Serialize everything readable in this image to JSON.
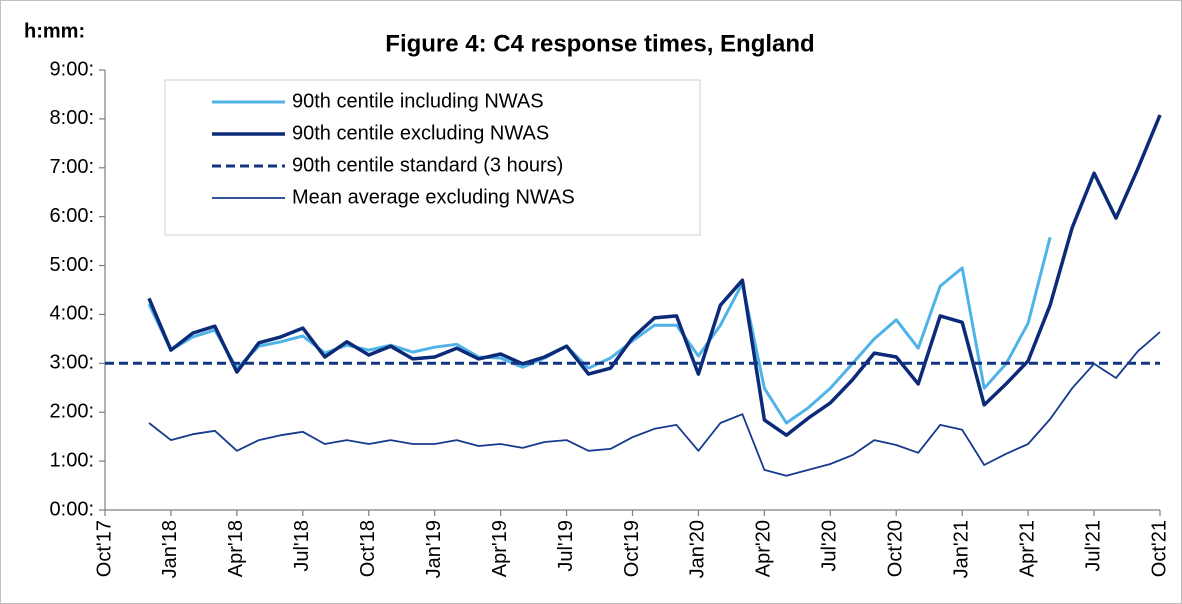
{
  "chart_data": {
    "type": "line",
    "title": "Figure 4: C4 response times, England",
    "y_label": "h:mm:",
    "categories": [
      "Oct'17",
      null,
      null,
      "Jan'18",
      null,
      null,
      "Apr'18",
      null,
      null,
      "Jul'18",
      null,
      null,
      "Oct'18",
      null,
      null,
      "Jan'19",
      null,
      null,
      "Apr'19",
      null,
      null,
      "Jul'19",
      null,
      null,
      "Oct'19",
      null,
      null,
      "Jan'20",
      null,
      null,
      "Apr'20",
      null,
      null,
      "Jul'20",
      null,
      null,
      "Oct'20",
      null,
      null,
      "Jan'21",
      null,
      null,
      "Apr'21",
      null,
      null,
      "Jul'21",
      null,
      null,
      "Oct'21"
    ],
    "series": [
      {
        "name": "90th centile including NWAS",
        "color": "#4fb3e8",
        "values": [
          null,
          null,
          4.21,
          3.27,
          3.54,
          3.68,
          2.9,
          3.35,
          3.44,
          3.56,
          3.21,
          3.37,
          3.27,
          3.37,
          3.23,
          3.33,
          3.39,
          3.13,
          3.11,
          2.92,
          3.11,
          3.35,
          2.9,
          3.11,
          3.46,
          3.78,
          3.78,
          3.15,
          3.78,
          4.64,
          2.49,
          1.78,
          2.09,
          2.49,
          2.99,
          3.5,
          3.89,
          3.31,
          4.58,
          4.95,
          2.49,
          2.99,
          3.82,
          5.58,
          null,
          null,
          null,
          null,
          null
        ]
      },
      {
        "name": "90th centile excluding NWAS",
        "color": "#0b2a78",
        "values": [
          null,
          null,
          4.33,
          3.27,
          3.62,
          3.76,
          2.82,
          3.42,
          3.54,
          3.72,
          3.13,
          3.44,
          3.17,
          3.35,
          3.09,
          3.13,
          3.31,
          3.09,
          3.19,
          2.99,
          3.13,
          3.35,
          2.78,
          2.9,
          3.52,
          3.93,
          3.97,
          2.78,
          4.19,
          4.7,
          1.84,
          1.53,
          1.88,
          2.19,
          2.66,
          3.21,
          3.13,
          2.58,
          3.97,
          3.84,
          2.15,
          2.58,
          3.05,
          4.19,
          5.77,
          6.89,
          5.97,
          6.99,
          8.08
        ]
      },
      {
        "name": "90th centile standard (3 hours)",
        "color": "#123582",
        "dashed": true,
        "values": [
          3,
          3,
          3,
          3,
          3,
          3,
          3,
          3,
          3,
          3,
          3,
          3,
          3,
          3,
          3,
          3,
          3,
          3,
          3,
          3,
          3,
          3,
          3,
          3,
          3,
          3,
          3,
          3,
          3,
          3,
          3,
          3,
          3,
          3,
          3,
          3,
          3,
          3,
          3,
          3,
          3,
          3,
          3,
          3,
          3,
          3,
          3,
          3,
          3
        ]
      },
      {
        "name": "Mean average excluding NWAS",
        "color": "#163a8c",
        "values": [
          null,
          null,
          1.78,
          1.43,
          1.55,
          1.62,
          1.21,
          1.43,
          1.53,
          1.6,
          1.35,
          1.43,
          1.35,
          1.43,
          1.35,
          1.35,
          1.43,
          1.31,
          1.35,
          1.27,
          1.39,
          1.43,
          1.21,
          1.25,
          1.49,
          1.66,
          1.74,
          1.21,
          1.78,
          1.96,
          0.82,
          0.7,
          0.82,
          0.94,
          1.12,
          1.43,
          1.33,
          1.17,
          1.74,
          1.64,
          0.92,
          1.15,
          1.35,
          1.86,
          2.49,
          2.99,
          2.7,
          3.25,
          3.64
        ]
      }
    ],
    "ylim": [
      0,
      9
    ],
    "yticks": [
      {
        "value": 0,
        "label": "0:00:"
      },
      {
        "value": 1,
        "label": "1:00:"
      },
      {
        "value": 2,
        "label": "2:00:"
      },
      {
        "value": 3,
        "label": "3:00:"
      },
      {
        "value": 4,
        "label": "4:00:"
      },
      {
        "value": 5,
        "label": "5:00:"
      },
      {
        "value": 6,
        "label": "6:00:"
      },
      {
        "value": 7,
        "label": "7:00:"
      },
      {
        "value": 8,
        "label": "8:00:"
      },
      {
        "value": 9,
        "label": "9:00:"
      }
    ],
    "grid": false,
    "legend": "top-left"
  }
}
